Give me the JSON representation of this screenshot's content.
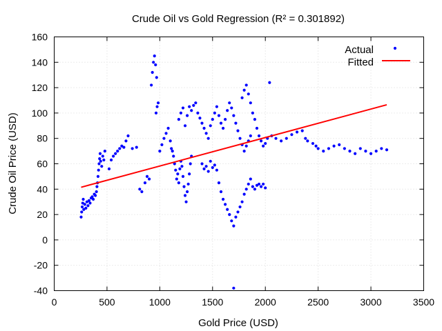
{
  "chart_data": {
    "type": "scatter",
    "title": "Crude Oil vs Gold Regression (R² = 0.301892)",
    "xlabel": "Gold Price (USD)",
    "ylabel": "Crude Oil Price (USD)",
    "xlim": [
      0,
      3500
    ],
    "ylim": [
      -40,
      160
    ],
    "xticks": [
      "0",
      "500",
      "1000",
      "1500",
      "2000",
      "2500",
      "3000",
      "3500"
    ],
    "yticks": [
      "-40",
      "-20",
      "0",
      "20",
      "40",
      "60",
      "80",
      "100",
      "120",
      "140",
      "160"
    ],
    "grid": true,
    "legend_position": "top-right",
    "series": [
      {
        "name": "Actual",
        "kind": "scatter",
        "color": "#0000ff",
        "points": [
          [
            255,
            18
          ],
          [
            260,
            22
          ],
          [
            265,
            26
          ],
          [
            270,
            29
          ],
          [
            275,
            32
          ],
          [
            280,
            24
          ],
          [
            290,
            28
          ],
          [
            300,
            25
          ],
          [
            310,
            30
          ],
          [
            320,
            27
          ],
          [
            330,
            31
          ],
          [
            340,
            29
          ],
          [
            350,
            33
          ],
          [
            360,
            34
          ],
          [
            370,
            32
          ],
          [
            380,
            36
          ],
          [
            390,
            35
          ],
          [
            400,
            38
          ],
          [
            405,
            42
          ],
          [
            410,
            45
          ],
          [
            415,
            50
          ],
          [
            420,
            55
          ],
          [
            425,
            60
          ],
          [
            430,
            64
          ],
          [
            435,
            68
          ],
          [
            440,
            62
          ],
          [
            450,
            58
          ],
          [
            460,
            66
          ],
          [
            470,
            63
          ],
          [
            480,
            70
          ],
          [
            520,
            56
          ],
          [
            540,
            63
          ],
          [
            560,
            66
          ],
          [
            580,
            68
          ],
          [
            600,
            70
          ],
          [
            620,
            72
          ],
          [
            640,
            74
          ],
          [
            660,
            73
          ],
          [
            680,
            78
          ],
          [
            700,
            82
          ],
          [
            740,
            72
          ],
          [
            780,
            73
          ],
          [
            810,
            40
          ],
          [
            830,
            38
          ],
          [
            860,
            45
          ],
          [
            880,
            50
          ],
          [
            900,
            48
          ],
          [
            920,
            122
          ],
          [
            930,
            132
          ],
          [
            940,
            140
          ],
          [
            950,
            145
          ],
          [
            960,
            138
          ],
          [
            970,
            128
          ],
          [
            965,
            100
          ],
          [
            975,
            105
          ],
          [
            985,
            108
          ],
          [
            1000,
            70
          ],
          [
            1020,
            75
          ],
          [
            1040,
            80
          ],
          [
            1060,
            84
          ],
          [
            1080,
            88
          ],
          [
            1100,
            78
          ],
          [
            1110,
            72
          ],
          [
            1120,
            70
          ],
          [
            1130,
            66
          ],
          [
            1140,
            60
          ],
          [
            1150,
            55
          ],
          [
            1160,
            48
          ],
          [
            1170,
            52
          ],
          [
            1180,
            45
          ],
          [
            1190,
            56
          ],
          [
            1200,
            62
          ],
          [
            1210,
            58
          ],
          [
            1220,
            50
          ],
          [
            1230,
            42
          ],
          [
            1240,
            35
          ],
          [
            1250,
            30
          ],
          [
            1260,
            38
          ],
          [
            1270,
            44
          ],
          [
            1280,
            52
          ],
          [
            1290,
            60
          ],
          [
            1300,
            66
          ],
          [
            1180,
            95
          ],
          [
            1200,
            100
          ],
          [
            1220,
            104
          ],
          [
            1240,
            90
          ],
          [
            1260,
            98
          ],
          [
            1280,
            105
          ],
          [
            1300,
            102
          ],
          [
            1320,
            106
          ],
          [
            1340,
            108
          ],
          [
            1360,
            100
          ],
          [
            1380,
            96
          ],
          [
            1400,
            92
          ],
          [
            1420,
            88
          ],
          [
            1440,
            84
          ],
          [
            1460,
            80
          ],
          [
            1480,
            90
          ],
          [
            1500,
            95
          ],
          [
            1520,
            100
          ],
          [
            1540,
            105
          ],
          [
            1560,
            98
          ],
          [
            1580,
            92
          ],
          [
            1600,
            88
          ],
          [
            1620,
            95
          ],
          [
            1640,
            102
          ],
          [
            1660,
            108
          ],
          [
            1680,
            104
          ],
          [
            1700,
            98
          ],
          [
            1720,
            92
          ],
          [
            1740,
            86
          ],
          [
            1760,
            80
          ],
          [
            1780,
            75
          ],
          [
            1800,
            70
          ],
          [
            1820,
            74
          ],
          [
            1840,
            78
          ],
          [
            1860,
            82
          ],
          [
            1400,
            60
          ],
          [
            1420,
            56
          ],
          [
            1440,
            58
          ],
          [
            1460,
            54
          ],
          [
            1480,
            62
          ],
          [
            1500,
            57
          ],
          [
            1520,
            59
          ],
          [
            1540,
            55
          ],
          [
            1560,
            45
          ],
          [
            1580,
            38
          ],
          [
            1600,
            32
          ],
          [
            1620,
            28
          ],
          [
            1640,
            24
          ],
          [
            1660,
            20
          ],
          [
            1680,
            15
          ],
          [
            1700,
            11
          ],
          [
            1720,
            18
          ],
          [
            1740,
            22
          ],
          [
            1760,
            26
          ],
          [
            1780,
            30
          ],
          [
            1800,
            36
          ],
          [
            1820,
            40
          ],
          [
            1840,
            44
          ],
          [
            1860,
            48
          ],
          [
            1880,
            42
          ],
          [
            1900,
            40
          ],
          [
            1920,
            43
          ],
          [
            1940,
            44
          ],
          [
            1960,
            42
          ],
          [
            1980,
            44
          ],
          [
            2000,
            41
          ],
          [
            1700,
            -38
          ],
          [
            1780,
            112
          ],
          [
            1800,
            118
          ],
          [
            1820,
            122
          ],
          [
            1840,
            115
          ],
          [
            1860,
            108
          ],
          [
            1880,
            100
          ],
          [
            1900,
            95
          ],
          [
            1920,
            88
          ],
          [
            1940,
            82
          ],
          [
            1960,
            78
          ],
          [
            1980,
            74
          ],
          [
            2000,
            76
          ],
          [
            2020,
            80
          ],
          [
            2040,
            124
          ],
          [
            2060,
            82
          ],
          [
            2100,
            80
          ],
          [
            2150,
            78
          ],
          [
            2200,
            80
          ],
          [
            2250,
            83
          ],
          [
            2300,
            85
          ],
          [
            2350,
            86
          ],
          [
            2380,
            80
          ],
          [
            2400,
            78
          ],
          [
            2450,
            76
          ],
          [
            2480,
            74
          ],
          [
            2500,
            72
          ],
          [
            2550,
            70
          ],
          [
            2600,
            72
          ],
          [
            2650,
            74
          ],
          [
            2700,
            75
          ],
          [
            2750,
            72
          ],
          [
            2800,
            70
          ],
          [
            2850,
            68
          ],
          [
            2900,
            72
          ],
          [
            2950,
            70
          ],
          [
            3000,
            68
          ],
          [
            3050,
            70
          ],
          [
            3100,
            72
          ],
          [
            3150,
            71
          ]
        ]
      },
      {
        "name": "Fitted",
        "kind": "line",
        "color": "#ff0000",
        "x": [
          255,
          3150
        ],
        "y": [
          41.5,
          106.5
        ]
      }
    ]
  }
}
